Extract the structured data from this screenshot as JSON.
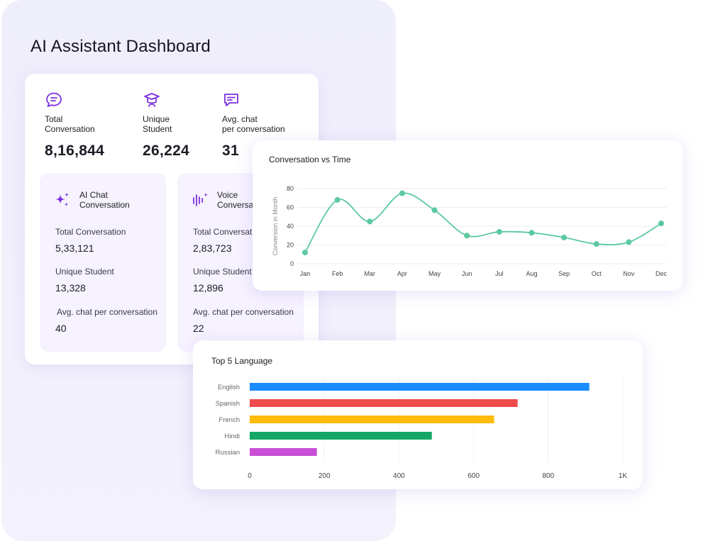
{
  "page": {
    "title": "AI Assistant Dashboard"
  },
  "stats": [
    {
      "icon": "chat-bubble-icon",
      "label": "Total\nConversation",
      "value": "8,16,844"
    },
    {
      "icon": "graduation-cap-icon",
      "label": "Unique\nStudent",
      "value": "26,224"
    },
    {
      "icon": "message-square-icon",
      "label": "Avg. chat\nper conversation",
      "value": "31"
    }
  ],
  "ai_chat": {
    "icon": "sparkles-icon",
    "title": "AI Chat\nConversation",
    "total_label": "Total Conversation",
    "total_value": "5,33,121",
    "unique_label": "Unique Student",
    "unique_value": "13,328",
    "avg_label": "Avg. chat per conversation",
    "avg_value": "40"
  },
  "voice": {
    "icon": "sound-wave-icon",
    "title": "Voice\nConversation",
    "total_label": "Total Conversation",
    "total_value": "2,83,723",
    "unique_label": "Unique Student",
    "unique_value": "12,896",
    "avg_label": "Avg. chat per conversation",
    "avg_value": "22"
  },
  "colors": {
    "accent": "#7b2fe0",
    "line": "#5cc9a0",
    "bars": [
      "#1a8cff",
      "#ef4b4b",
      "#ffbb0b",
      "#13a865",
      "#c84fd6"
    ]
  },
  "chart_data": [
    {
      "type": "line",
      "title": "Conversation vs Time",
      "xlabel": "",
      "ylabel": "Conversion in Month",
      "categories": [
        "Jan",
        "Feb",
        "Mar",
        "Apr",
        "May",
        "Jun",
        "Jul",
        "Aug",
        "Sep",
        "Oct",
        "Nov",
        "Dec"
      ],
      "values": [
        12,
        68,
        45,
        75,
        57,
        30,
        34,
        33,
        28,
        21,
        23,
        43
      ],
      "yticks": [
        "0",
        "20",
        "40",
        "60",
        "80"
      ],
      "ylim": [
        0,
        80
      ],
      "grid": true
    },
    {
      "type": "bar",
      "orientation": "horizontal",
      "title": "Top 5 Language",
      "categories": [
        "English",
        "Spanish",
        "French",
        "Hindi",
        "Russian"
      ],
      "values": [
        910,
        718,
        655,
        488,
        180
      ],
      "xticks": [
        "0",
        "200",
        "400",
        "600",
        "800",
        "1K"
      ],
      "xlim": [
        0,
        1000
      ],
      "grid": true
    }
  ]
}
